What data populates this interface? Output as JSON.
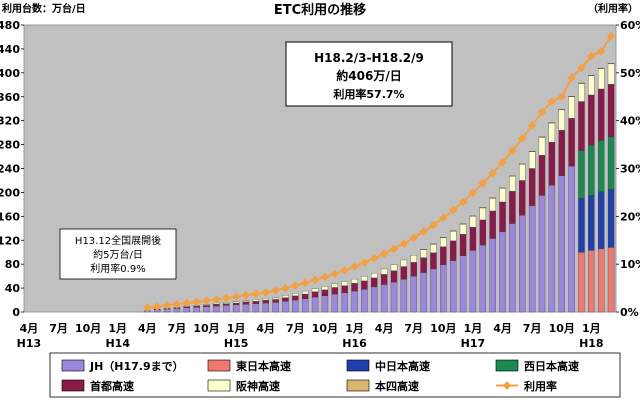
{
  "chart_data": {
    "type": "bar",
    "title": "ETC利用の推移",
    "ylabel_left": "利用台数：万台/日",
    "ylabel_right": "（利用率）",
    "y_left_ticks": [
      "0",
      "40",
      "80",
      "120",
      "160",
      "200",
      "240",
      "280",
      "320",
      "360",
      "400",
      "440",
      "480"
    ],
    "y_right_ticks": [
      "0%",
      "10%",
      "20%",
      "30%",
      "40%",
      "50%",
      "60%"
    ],
    "ylim_left": [
      0,
      480
    ],
    "ylim_right": [
      0,
      60
    ],
    "grid": false,
    "plot_background": "#c0c0c0",
    "legend_position": "bottom",
    "x_month_labels": [
      "4月",
      "7月",
      "10月",
      "1月",
      "4月",
      "7月",
      "10月",
      "1月",
      "4月",
      "7月",
      "10月",
      "1月",
      "4月",
      "7月",
      "10月",
      "1月",
      "4月",
      "7月",
      "10月",
      "1月"
    ],
    "x_year_labels": [
      {
        "label": "H13",
        "at": 0
      },
      {
        "label": "H14",
        "at": 3
      },
      {
        "label": "H15",
        "at": 7
      },
      {
        "label": "H16",
        "at": 11
      },
      {
        "label": "H17",
        "at": 15
      },
      {
        "label": "H18",
        "at": 19
      }
    ],
    "n_bars": 60,
    "stacked_series_jh": [
      {
        "name": "JH（H17.9まで）",
        "color": "#9b86e0",
        "values": [
          0,
          0,
          0,
          0,
          0,
          0,
          0,
          0,
          0,
          0,
          0,
          0,
          2,
          4,
          5,
          6,
          7,
          8,
          9,
          10,
          11,
          12,
          13,
          14,
          15,
          16,
          18,
          20,
          22,
          25,
          27,
          30,
          32,
          35,
          38,
          42,
          46,
          50,
          55,
          60,
          66,
          72,
          79,
          86,
          94,
          103,
          112,
          123,
          134,
          148,
          162,
          178,
          195,
          212,
          228,
          244,
          0,
          0,
          0,
          0
        ]
      },
      {
        "name": "首都高速",
        "color": "#8b1a4a",
        "values": [
          0,
          0,
          0,
          0,
          0,
          0,
          0,
          0,
          0,
          0,
          0,
          0,
          0,
          1,
          1,
          1,
          2,
          2,
          2,
          3,
          3,
          3,
          4,
          4,
          5,
          5,
          6,
          7,
          8,
          9,
          10,
          11,
          12,
          13,
          14,
          15,
          17,
          19,
          21,
          23,
          25,
          27,
          30,
          33,
          36,
          39,
          42,
          46,
          50,
          54,
          58,
          62,
          67,
          72,
          76,
          80,
          0,
          0,
          0,
          0
        ]
      },
      {
        "name": "阪神高速",
        "color": "#ffffcc",
        "values": [
          0,
          0,
          0,
          0,
          0,
          0,
          0,
          0,
          0,
          0,
          0,
          0,
          0,
          0,
          0,
          1,
          1,
          1,
          1,
          2,
          2,
          2,
          2,
          3,
          3,
          3,
          4,
          4,
          5,
          5,
          6,
          6,
          7,
          7,
          8,
          8,
          9,
          10,
          11,
          12,
          13,
          14,
          15,
          16,
          17,
          18,
          20,
          21,
          23,
          25,
          27,
          28,
          30,
          32,
          34,
          36,
          0,
          0,
          0,
          0
        ]
      },
      {
        "name": "本四高速",
        "color": "#d8b470",
        "values": [
          0,
          0,
          0,
          0,
          0,
          0,
          0,
          0,
          0,
          0,
          0,
          0,
          0,
          0,
          0,
          0,
          0,
          0,
          0,
          0,
          0,
          0,
          0,
          0,
          0,
          0,
          0,
          0,
          0,
          0,
          0,
          0,
          0,
          0,
          0,
          0,
          0,
          0,
          0,
          0,
          1,
          1,
          1,
          1,
          1,
          1,
          1,
          1,
          1,
          1,
          1,
          1,
          1,
          1,
          1,
          1,
          0,
          0,
          0,
          0
        ]
      }
    ],
    "stacked_series_split": [
      {
        "name": "東日本高速",
        "color": "#f07870",
        "values": [
          100,
          103,
          106,
          108
        ]
      },
      {
        "name": "中日本高速",
        "color": "#2040b0",
        "values": [
          90,
          92,
          95,
          97
        ]
      },
      {
        "name": "西日本高速",
        "color": "#1a8a50",
        "values": [
          80,
          84,
          86,
          88
        ]
      },
      {
        "name": "首都高速",
        "color": "#8b1a4a",
        "values": [
          82,
          84,
          86,
          88
        ]
      },
      {
        "name": "阪神高速",
        "color": "#ffffcc",
        "values": [
          30,
          32,
          34,
          34
        ]
      },
      {
        "name": "本四高速",
        "color": "#d8b470",
        "values": [
          1,
          1,
          1,
          1
        ]
      }
    ],
    "line_series": {
      "name": "利用率",
      "color": "#f5a040",
      "axis": "right",
      "values": [
        null,
        null,
        null,
        null,
        null,
        null,
        null,
        null,
        null,
        null,
        null,
        null,
        0.9,
        1.1,
        1.4,
        1.6,
        1.9,
        2.1,
        2.4,
        2.6,
        2.9,
        3.2,
        3.5,
        3.8,
        4.1,
        4.5,
        5.0,
        5.5,
        6.1,
        6.7,
        7.3,
        8.0,
        8.7,
        9.5,
        10.3,
        11.2,
        12.2,
        13.2,
        14.3,
        15.5,
        16.8,
        18.2,
        19.7,
        21.3,
        23.0,
        24.9,
        26.9,
        29.0,
        31.3,
        33.7,
        36.3,
        39.0,
        41.8,
        44.0,
        45.0,
        49.0,
        51.0,
        53.5,
        54.5,
        57.7
      ]
    },
    "annotations": {
      "box_h13": [
        "H13.12全国展開後",
        "約5万台/日",
        "利用率0.9%"
      ],
      "box_h18": [
        "H18.2/3-H18.2/9",
        "約406万/日",
        "利用率57.7%"
      ]
    },
    "legend": [
      {
        "label": "JH（H17.9まで）",
        "color": "#9b86e0",
        "kind": "box"
      },
      {
        "label": "東日本高速",
        "color": "#f07870",
        "kind": "box"
      },
      {
        "label": "中日本高速",
        "color": "#2040b0",
        "kind": "box"
      },
      {
        "label": "西日本高速",
        "color": "#1a8a50",
        "kind": "box"
      },
      {
        "label": "首都高速",
        "color": "#8b1a4a",
        "kind": "box"
      },
      {
        "label": "阪神高速",
        "color": "#ffffcc",
        "kind": "box"
      },
      {
        "label": "本四高速",
        "color": "#d8b470",
        "kind": "box"
      },
      {
        "label": "利用率",
        "color": "#f5a040",
        "kind": "line"
      }
    ]
  }
}
